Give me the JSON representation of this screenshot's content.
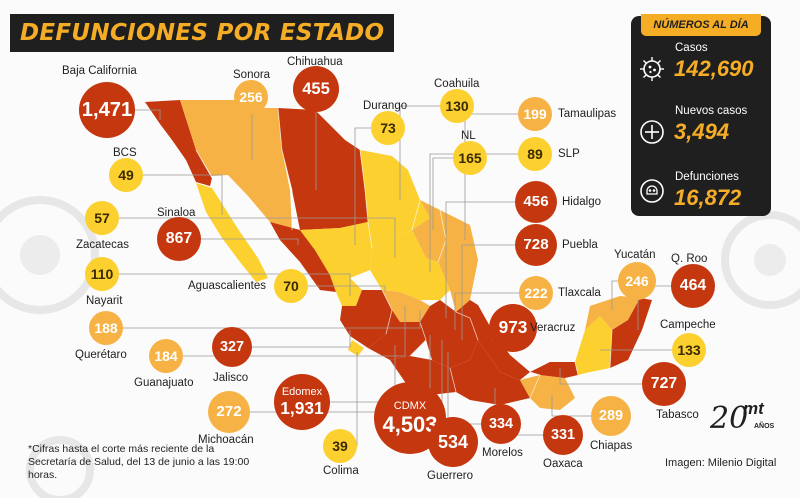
{
  "title": "DEFUNCIONES POR ESTADO",
  "colors": {
    "low": "#fcd02f",
    "mid": "#f6b244",
    "high": "#c5370e",
    "dark": "#1f1f1f",
    "accent": "#f6ad26"
  },
  "states": [
    {
      "key": "baja_california",
      "name": "Baja California",
      "value": "1,471",
      "level": "high"
    },
    {
      "key": "sonora",
      "name": "Sonora",
      "value": "256",
      "level": "mid"
    },
    {
      "key": "chihuahua",
      "name": "Chihuahua",
      "value": "455",
      "level": "high"
    },
    {
      "key": "coahuila",
      "name": "Coahuila",
      "value": "130",
      "level": "low"
    },
    {
      "key": "durango",
      "name": "Durango",
      "value": "73",
      "level": "low"
    },
    {
      "key": "tamaulipas",
      "name": "Tamaulipas",
      "value": "199",
      "level": "mid"
    },
    {
      "key": "nl",
      "name": "NL",
      "value": "165",
      "level": "low"
    },
    {
      "key": "slp",
      "name": "SLP",
      "value": "89",
      "level": "low"
    },
    {
      "key": "bcs",
      "name": "BCS",
      "value": "49",
      "level": "low"
    },
    {
      "key": "hidalgo",
      "name": "Hidalgo",
      "value": "456",
      "level": "high"
    },
    {
      "key": "zacatecas",
      "name": "Zacatecas",
      "value": "57",
      "level": "low"
    },
    {
      "key": "sinaloa",
      "name": "Sinaloa",
      "value": "867",
      "level": "high"
    },
    {
      "key": "puebla",
      "name": "Puebla",
      "value": "728",
      "level": "high"
    },
    {
      "key": "nayarit",
      "name": "Nayarit",
      "value": "110",
      "level": "low"
    },
    {
      "key": "aguascalientes",
      "name": "Aguascalientes",
      "value": "70",
      "level": "low"
    },
    {
      "key": "tlaxcala",
      "name": "Tlaxcala",
      "value": "222",
      "level": "mid"
    },
    {
      "key": "yucatan",
      "name": "Yucatán",
      "value": "246",
      "level": "mid"
    },
    {
      "key": "qroo",
      "name": "Q. Roo",
      "value": "464",
      "level": "high"
    },
    {
      "key": "queretaro",
      "name": "Querétaro",
      "value": "188",
      "level": "mid"
    },
    {
      "key": "guanajuato",
      "name": "Guanajuato",
      "value": "184",
      "level": "mid"
    },
    {
      "key": "jalisco",
      "name": "Jalisco",
      "value": "327",
      "level": "high"
    },
    {
      "key": "veracruz",
      "name": "Veracruz",
      "value": "973",
      "level": "high"
    },
    {
      "key": "campeche",
      "name": "Campeche",
      "value": "133",
      "level": "low"
    },
    {
      "key": "edomex",
      "name": "Edomex",
      "value": "1,931",
      "level": "high"
    },
    {
      "key": "cdmx",
      "name": "CDMX",
      "value": "4,503",
      "level": "high"
    },
    {
      "key": "tabasco",
      "name": "Tabasco",
      "value": "727",
      "level": "high"
    },
    {
      "key": "michoacan",
      "name": "Michoacán",
      "value": "272",
      "level": "mid"
    },
    {
      "key": "chiapas",
      "name": "Chiapas",
      "value": "289",
      "level": "mid"
    },
    {
      "key": "guerrero",
      "name": "Guerrero",
      "value": "534",
      "level": "high"
    },
    {
      "key": "morelos",
      "name": "Morelos",
      "value": "334",
      "level": "high"
    },
    {
      "key": "oaxaca",
      "name": "Oaxaca",
      "value": "331",
      "level": "high"
    },
    {
      "key": "colima",
      "name": "Colima",
      "value": "39",
      "level": "low"
    }
  ],
  "stats": {
    "header": "NÚMEROS AL DÍA",
    "casos_label": "Casos",
    "casos_value": "142,690",
    "nuevos_label": "Nuevos casos",
    "nuevos_value": "3,494",
    "defunciones_label": "Defunciones",
    "defunciones_value": "16,872",
    "icons": [
      "virus-icon",
      "plus-icon",
      "skull-icon"
    ]
  },
  "footnote": "*Cifras hasta el corte más reciente de la Secretaría de Salud, del 13 de junio a las 19:00 horas.",
  "credit": "Imagen: Milenio Digital",
  "logo": {
    "number": "20",
    "brand": "mt",
    "sub": "AÑOS"
  }
}
